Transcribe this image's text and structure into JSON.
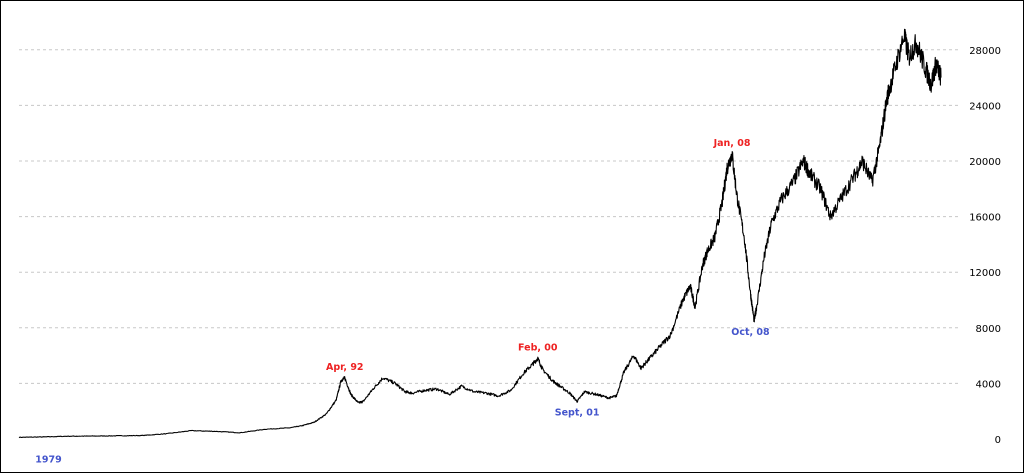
{
  "chart_data": {
    "type": "line",
    "title": "",
    "xlabel": "",
    "ylabel": "",
    "x_range": [
      1979.0,
      2016.5
    ],
    "ylim": [
      0,
      30000
    ],
    "y_ticks": [
      0,
      4000,
      8000,
      12000,
      16000,
      20000,
      24000,
      28000
    ],
    "y_tick_labels": [
      "0",
      "4000",
      "8000",
      "12000",
      "16000",
      "20000",
      "24000",
      "28000"
    ],
    "grid": true,
    "legend": "none",
    "line_color": "#000000",
    "series": [
      {
        "x": [
          1979.0,
          1980.0,
          1981.0,
          1982.0,
          1983.0,
          1984.0,
          1985.0,
          1986.0,
          1987.0,
          1988.0,
          1989.0,
          1990.0,
          1990.5,
          1991.0,
          1991.5,
          1991.9,
          1992.1,
          1992.25,
          1992.5,
          1992.8,
          1993.0,
          1993.4,
          1993.8,
          1994.3,
          1994.7,
          1995.0,
          1995.5,
          1996.0,
          1996.5,
          1997.0,
          1997.5,
          1998.0,
          1998.5,
          1999.0,
          1999.5,
          1999.9,
          2000.1,
          2000.3,
          2000.7,
          2001.0,
          2001.4,
          2001.7,
          2002.0,
          2002.5,
          2003.0,
          2003.3,
          2003.6,
          2004.0,
          2004.3,
          2004.6,
          2005.0,
          2005.5,
          2006.0,
          2006.3,
          2006.5,
          2006.8,
          2007.0,
          2007.3,
          2007.6,
          2007.8,
          2008.0,
          2008.2,
          2008.5,
          2008.75,
          2008.9,
          2009.0,
          2009.3,
          2009.6,
          2010.0,
          2010.5,
          2010.9,
          2011.2,
          2011.6,
          2012.0,
          2012.5,
          2013.0,
          2013.3,
          2013.7,
          2014.0,
          2014.3,
          2014.6,
          2015.0,
          2015.2,
          2015.5,
          2015.8,
          2016.1,
          2016.3,
          2016.5
        ],
        "y": [
          120,
          150,
          200,
          210,
          230,
          250,
          380,
          600,
          550,
          450,
          700,
          800,
          950,
          1200,
          1800,
          2800,
          4200,
          4400,
          3200,
          2600,
          2700,
          3600,
          4400,
          4000,
          3400,
          3300,
          3500,
          3600,
          3200,
          3800,
          3400,
          3300,
          3100,
          3500,
          4700,
          5400,
          5800,
          5000,
          4200,
          3800,
          3300,
          2700,
          3400,
          3200,
          2950,
          3100,
          4800,
          6000,
          5100,
          5700,
          6500,
          7500,
          10000,
          11000,
          9500,
          12500,
          13500,
          14500,
          17000,
          19500,
          20500,
          17500,
          14500,
          10500,
          8500,
          9500,
          13000,
          15500,
          17200,
          18500,
          20000,
          19000,
          18000,
          16000,
          17500,
          19000,
          20000,
          18500,
          21000,
          24500,
          26500,
          29000,
          27500,
          28500,
          27000,
          25500,
          27000,
          26000
        ]
      }
    ],
    "annotations": [
      {
        "text": "1979",
        "x": 1980.2,
        "y": -700,
        "color": "#4455cc",
        "position": "below"
      },
      {
        "text": "Apr, 92",
        "x": 1992.25,
        "y": 4400,
        "color": "#ee2222",
        "position": "above"
      },
      {
        "text": "Feb, 00",
        "x": 2000.1,
        "y": 5800,
        "color": "#ee2222",
        "position": "above"
      },
      {
        "text": "Sept, 01",
        "x": 2001.7,
        "y": 2700,
        "color": "#4455cc",
        "position": "below"
      },
      {
        "text": "Jan, 08",
        "x": 2008.0,
        "y": 20500,
        "color": "#ee2222",
        "position": "above"
      },
      {
        "text": "Oct, 08",
        "x": 2008.75,
        "y": 8500,
        "color": "#4455cc",
        "position": "below"
      }
    ]
  }
}
